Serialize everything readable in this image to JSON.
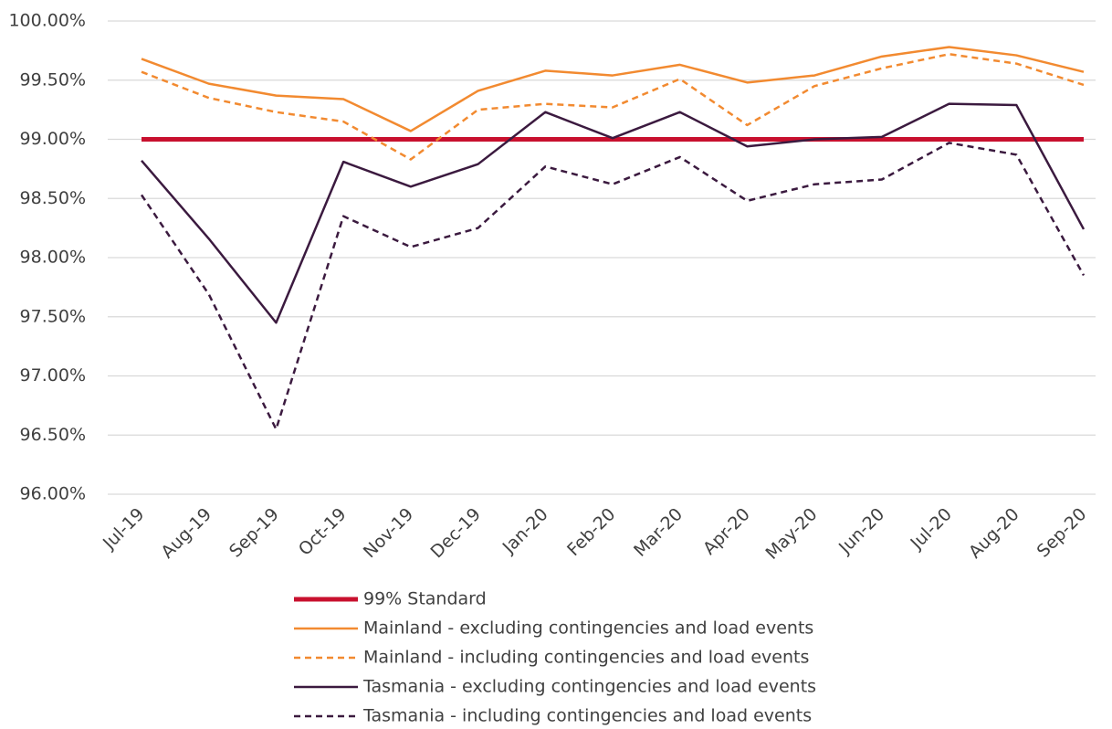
{
  "chart_data": {
    "type": "line",
    "categories": [
      "Jul-19",
      "Aug-19",
      "Sep-19",
      "Oct-19",
      "Nov-19",
      "Dec-19",
      "Jan-20",
      "Feb-20",
      "Mar-20",
      "Apr-20",
      "May-20",
      "Jun-20",
      "Jul-20",
      "Aug-20",
      "Sep-20"
    ],
    "series": [
      {
        "name": "99% Standard",
        "color": "#c8102e",
        "dashed": false,
        "width": 5,
        "values": [
          99,
          99,
          99,
          99,
          99,
          99,
          99,
          99,
          99,
          99,
          99,
          99,
          99,
          99,
          99
        ]
      },
      {
        "name": "Mainland - excluding contingencies and load events",
        "color": "#f28a30",
        "dashed": false,
        "width": 2.5,
        "values": [
          99.68,
          99.47,
          99.37,
          99.34,
          99.07,
          99.41,
          99.58,
          99.54,
          99.63,
          99.48,
          99.54,
          99.7,
          99.78,
          99.71,
          99.57
        ]
      },
      {
        "name": "Mainland - including contingencies and load events",
        "color": "#f28a30",
        "dashed": true,
        "width": 2.5,
        "values": [
          99.57,
          99.35,
          99.23,
          99.15,
          98.83,
          99.25,
          99.3,
          99.27,
          99.51,
          99.12,
          99.45,
          99.6,
          99.72,
          99.64,
          99.46
        ]
      },
      {
        "name": "Tasmania - excluding contingencies and load events",
        "color": "#3b1a3f",
        "dashed": false,
        "width": 2.5,
        "values": [
          98.82,
          98.16,
          97.45,
          98.81,
          98.6,
          98.79,
          99.23,
          99.01,
          99.23,
          98.94,
          99,
          99.02,
          99.3,
          99.29,
          98.24
        ]
      },
      {
        "name": "Tasmania - including contingencies and load events",
        "color": "#3b1a3f",
        "dashed": true,
        "width": 2.5,
        "values": [
          98.53,
          97.69,
          96.55,
          98.35,
          98.09,
          98.25,
          98.77,
          98.62,
          98.85,
          98.48,
          98.62,
          98.66,
          98.97,
          98.87,
          97.85
        ]
      }
    ],
    "ylim": [
      96,
      100
    ],
    "yticks": [
      {
        "value": 96,
        "label": "96.00%"
      },
      {
        "value": 96.5,
        "label": "96.50%"
      },
      {
        "value": 97,
        "label": "97.00%"
      },
      {
        "value": 97.5,
        "label": "97.50%"
      },
      {
        "value": 98,
        "label": "98.00%"
      },
      {
        "value": 98.5,
        "label": "98.50%"
      },
      {
        "value": 99,
        "label": "99.00%"
      },
      {
        "value": 99.5,
        "label": "99.50%"
      },
      {
        "value": 100,
        "label": "100.00%"
      }
    ],
    "grid": true
  }
}
